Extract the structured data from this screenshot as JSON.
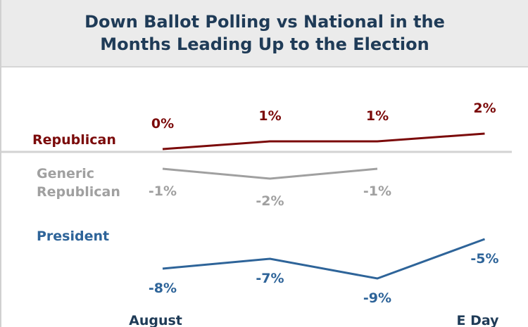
{
  "chart_data": {
    "type": "line",
    "title": "Down Ballot Polling vs National in the Months Leading Up to the Election",
    "categories": [
      "August",
      null,
      null,
      "E Day"
    ],
    "series": [
      {
        "name": "Republican",
        "color": "#7b0a0a",
        "values": [
          0,
          1,
          1,
          2
        ],
        "value_labels": [
          "0%",
          "1%",
          "1%",
          "2%"
        ]
      },
      {
        "name": "Generic Republican",
        "color": "#a0a0a0",
        "values": [
          -1,
          -2,
          -1,
          null
        ],
        "value_labels": [
          "-1%",
          "-2%",
          "-1%",
          null
        ]
      },
      {
        "name": "President",
        "color": "#2e6499",
        "values": [
          -8,
          -7,
          -9,
          -5
        ],
        "value_labels": [
          "-8%",
          "-7%",
          "-9%",
          "-5%"
        ]
      }
    ]
  }
}
